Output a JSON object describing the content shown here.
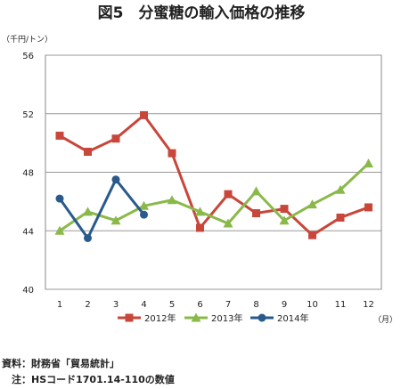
{
  "chart_data": {
    "type": "line",
    "title": "図5　分蜜糖の輸入価格の推移",
    "ylabel": "（千円/トン）",
    "xlabel": "（月）",
    "categories": [
      "1",
      "2",
      "3",
      "4",
      "5",
      "6",
      "7",
      "8",
      "9",
      "10",
      "11",
      "12"
    ],
    "yticks": [
      "40",
      "44",
      "48",
      "52",
      "56"
    ],
    "ylim": [
      40,
      56
    ],
    "grid": true,
    "legend_position": "bottom",
    "series": [
      {
        "name": "2012年",
        "color": "#c8463a",
        "marker": "square",
        "values": [
          50.5,
          49.4,
          50.3,
          51.9,
          49.3,
          44.2,
          46.5,
          45.2,
          45.5,
          43.7,
          44.9,
          45.6
        ]
      },
      {
        "name": "2013年",
        "color": "#8ab94a",
        "marker": "triangle",
        "values": [
          44.0,
          45.3,
          44.7,
          45.7,
          46.1,
          45.3,
          44.5,
          46.7,
          44.7,
          45.8,
          46.8,
          48.6
        ]
      },
      {
        "name": "2014年",
        "color": "#2a5a8c",
        "marker": "circle",
        "values": [
          46.2,
          43.5,
          47.5,
          45.1,
          null,
          null,
          null,
          null,
          null,
          null,
          null,
          null
        ]
      }
    ]
  },
  "notes": {
    "source": "資料：財務省「貿易統計」",
    "note": "　注：HSコード1701.14-110の数値"
  }
}
